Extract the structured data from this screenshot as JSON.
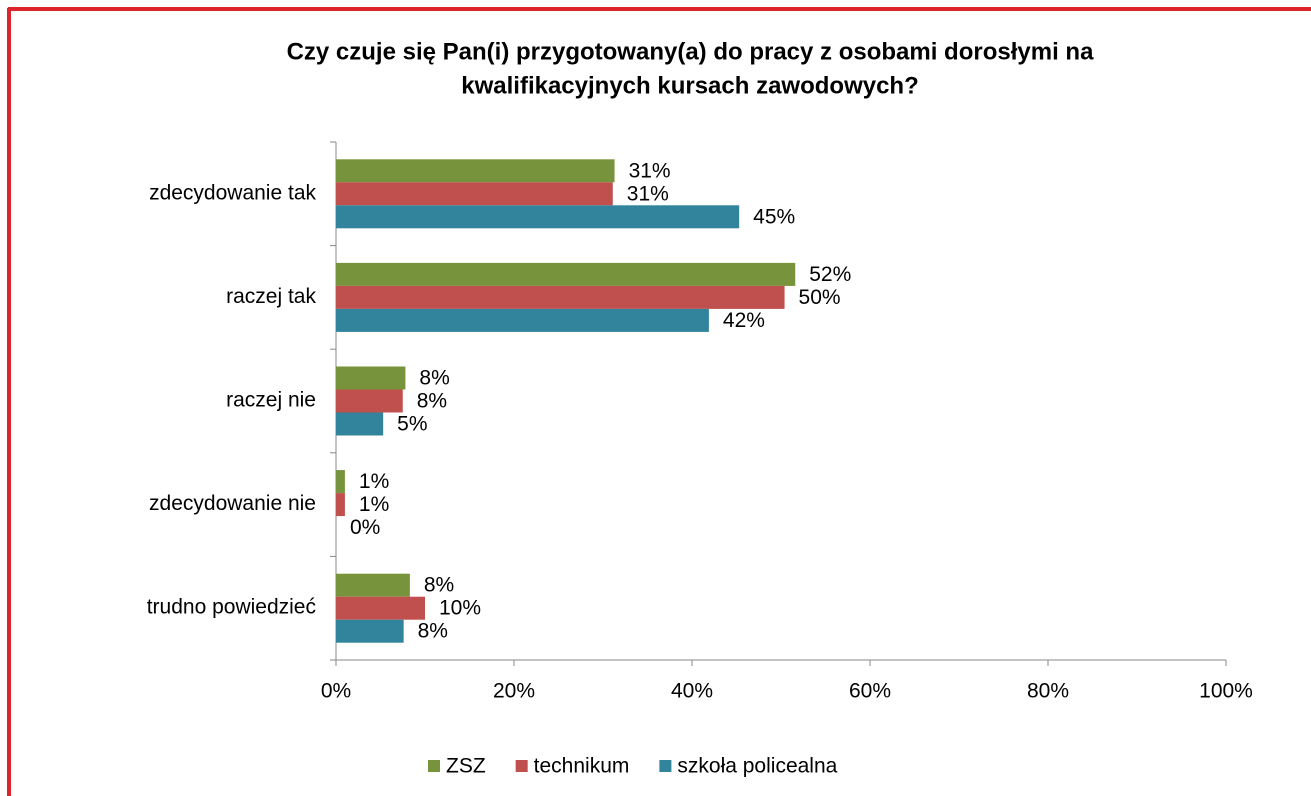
{
  "chart_data": {
    "type": "bar",
    "orientation": "horizontal",
    "title": [
      "Czy czuje się Pan(i) przygotowany(a) do pracy z osobami dorosłymi na",
      "kwalifikacyjnych kursach zawodowych?"
    ],
    "categories": [
      "zdecydowanie tak",
      "raczej tak",
      "raczej nie",
      "zdecydowanie nie",
      "trudno powiedzieć"
    ],
    "series": [
      {
        "name": "ZSZ",
        "color": "#77933c",
        "values": [
          31.3,
          51.6,
          7.8,
          1.0,
          8.3
        ],
        "value_labels": [
          "31%",
          "52%",
          "8%",
          "1%",
          "8%"
        ]
      },
      {
        "name": "technikum",
        "color": "#c0504d",
        "values": [
          31.1,
          50.4,
          7.5,
          1.0,
          10.0
        ],
        "value_labels": [
          "31%",
          "50%",
          "8%",
          "1%",
          "10%"
        ]
      },
      {
        "name": "szkoła policealna",
        "color": "#31849b",
        "values": [
          45.3,
          41.9,
          5.3,
          0,
          7.6
        ],
        "value_labels": [
          "45%",
          "42%",
          "5%",
          "0%",
          "8%"
        ]
      }
    ],
    "xlim": [
      0,
      100
    ],
    "xticks": [
      {
        "value": 0,
        "label": "0%"
      },
      {
        "value": 20,
        "label": "20%"
      },
      {
        "value": 40,
        "label": "40%"
      },
      {
        "value": 60,
        "label": "60%"
      },
      {
        "value": 80,
        "label": "80%"
      },
      {
        "value": 100,
        "label": "100%"
      }
    ],
    "legend": "bottom"
  }
}
